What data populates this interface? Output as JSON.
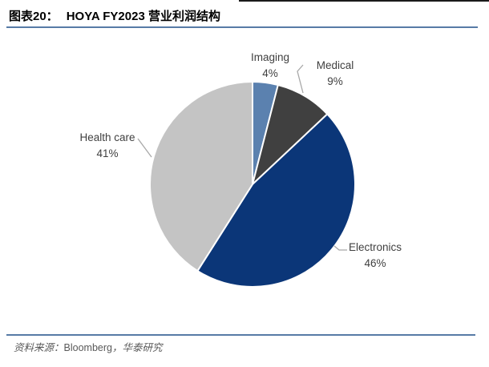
{
  "header": {
    "figure_label": "图表20：",
    "title": "HOYA FY2023  营业利润结构"
  },
  "chart_data": {
    "type": "pie",
    "title": "HOYA FY2023 营业利润结构",
    "unit": "%",
    "start_angle_deg": 0,
    "direction": "clockwise",
    "legend": "none",
    "labels_position": "outside",
    "slices": [
      {
        "label": "Imaging",
        "value": 4,
        "pct_label": "4%",
        "color": "#5B81AF"
      },
      {
        "label": "Medical",
        "value": 9,
        "pct_label": "9%",
        "color": "#404040"
      },
      {
        "label": "Electronics",
        "value": 46,
        "pct_label": "46%",
        "color": "#0B3678"
      },
      {
        "label": "Health care",
        "value": 41,
        "pct_label": "41%",
        "color": "#C4C4C4"
      }
    ]
  },
  "source": {
    "prefix": "资料来源：",
    "bloomberg": "Bloomberg",
    "suffix": "，华泰研究"
  },
  "colors": {
    "rule_blue": "#577BA6",
    "top_rule": "#1a1a1a",
    "leader_line": "#A8A8A8",
    "label_text": "#404040",
    "source_text": "#595959",
    "slice_border": "#FFFFFF"
  }
}
